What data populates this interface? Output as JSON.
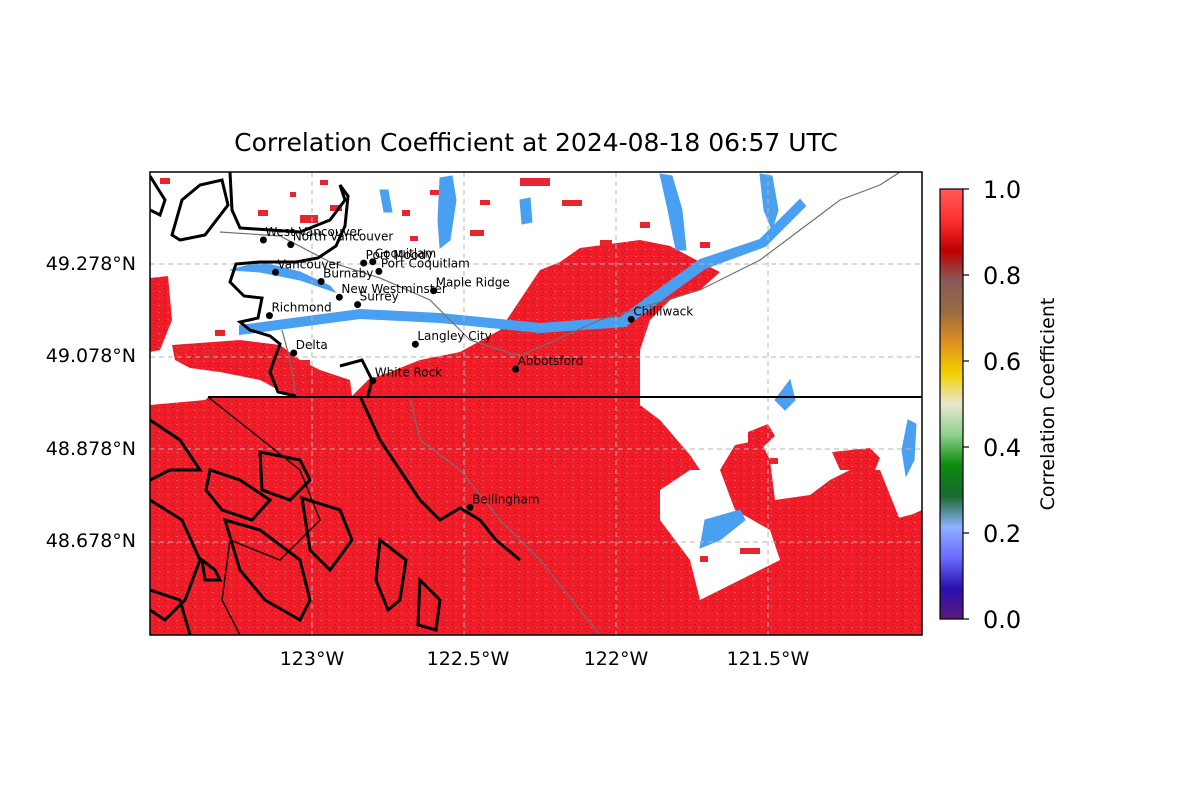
{
  "title": "Correlation Coefficient at 2024-08-18 06:57 UTC",
  "map": {
    "lat_ticks": [
      "49.278°N",
      "49.078°N",
      "48.878°N",
      "48.678°N"
    ],
    "lon_ticks": [
      "123°W",
      "122.5°W",
      "122°W",
      "121.5°W"
    ],
    "cities": [
      {
        "name": "West Vancouver",
        "lon": -123.16,
        "lat": 49.33
      },
      {
        "name": "North Vancouver",
        "lon": -123.07,
        "lat": 49.32
      },
      {
        "name": "Vancouver",
        "lon": -123.12,
        "lat": 49.26
      },
      {
        "name": "Burnaby",
        "lon": -122.97,
        "lat": 49.24
      },
      {
        "name": "Port Moody",
        "lon": -122.83,
        "lat": 49.28
      },
      {
        "name": "Coquitlam",
        "lon": -122.8,
        "lat": 49.283
      },
      {
        "name": "Port Coquitlam",
        "lon": -122.78,
        "lat": 49.262
      },
      {
        "name": "New Westminster",
        "lon": -122.91,
        "lat": 49.206
      },
      {
        "name": "Surrey",
        "lon": -122.85,
        "lat": 49.19
      },
      {
        "name": "Maple Ridge",
        "lon": -122.6,
        "lat": 49.22
      },
      {
        "name": "Richmond",
        "lon": -123.14,
        "lat": 49.166
      },
      {
        "name": "Delta",
        "lon": -123.06,
        "lat": 49.085
      },
      {
        "name": "Langley City",
        "lon": -122.66,
        "lat": 49.104
      },
      {
        "name": "Abbotsford",
        "lon": -122.33,
        "lat": 49.05
      },
      {
        "name": "Chilliwack",
        "lon": -121.95,
        "lat": 49.158
      },
      {
        "name": "White Rock",
        "lon": -122.8,
        "lat": 49.025
      },
      {
        "name": "Bellingham",
        "lon": -122.48,
        "lat": 48.75
      }
    ]
  },
  "colorbar": {
    "label": "Correlation Coefficient",
    "ticks": [
      "0.0",
      "0.2",
      "0.4",
      "0.6",
      "0.8",
      "1.0"
    ],
    "colors": [
      "#5a1a7a",
      "#2a0fb0",
      "#6a6aff",
      "#8fb0ff",
      "#1a6a30",
      "#0a8a0a",
      "#8fcf8f",
      "#e8e8d0",
      "#f0d000",
      "#e09020",
      "#9a6a40",
      "#8a5a5a",
      "#c00000",
      "#ff3030",
      "#ff5a5a"
    ]
  }
}
